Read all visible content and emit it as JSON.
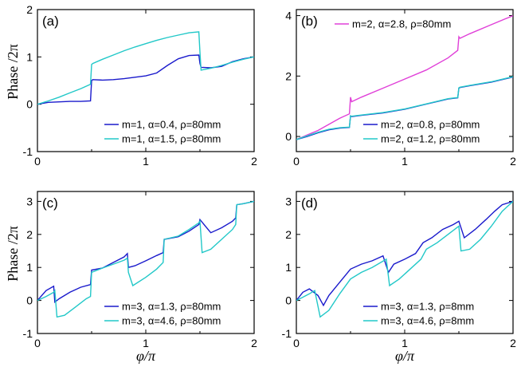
{
  "colors": {
    "blue": "#1a1acc",
    "cyan": "#22c8c8",
    "magenta": "#e040d8",
    "axis": "#000000"
  },
  "ylabel": "Phase /2π",
  "xlabel": "φ/π",
  "chart_data": [
    {
      "type": "line",
      "panel_label": "(a)",
      "xlim": [
        0,
        2
      ],
      "ylim": [
        -1,
        2
      ],
      "xticks": [
        "0",
        "1",
        "2"
      ],
      "yticks": [
        "-1",
        "0",
        "1",
        "2"
      ],
      "legend_position": "bottom-right",
      "series": [
        {
          "name": "m=1, α=0.4, ρ=80mm",
          "color": "#1a1acc",
          "x": [
            0,
            0.1,
            0.2,
            0.3,
            0.4,
            0.49,
            0.5,
            0.51,
            0.6,
            0.7,
            0.8,
            0.9,
            1.0,
            1.1,
            1.2,
            1.3,
            1.4,
            1.49,
            1.5,
            1.51,
            1.6,
            1.7,
            1.8,
            1.9,
            2.0
          ],
          "y": [
            0,
            0.04,
            0.05,
            0.06,
            0.06,
            0.07,
            0.5,
            0.52,
            0.51,
            0.52,
            0.54,
            0.57,
            0.6,
            0.66,
            0.82,
            0.96,
            1.03,
            1.04,
            0.86,
            0.78,
            0.77,
            0.8,
            0.9,
            0.96,
            1.0
          ]
        },
        {
          "name": "m=1, α=1.5, ρ=80mm",
          "color": "#22c8c8",
          "x": [
            0,
            0.1,
            0.2,
            0.3,
            0.4,
            0.49,
            0.5,
            0.51,
            0.6,
            0.7,
            0.8,
            0.9,
            1.0,
            1.1,
            1.2,
            1.3,
            1.4,
            1.49,
            1.5,
            1.51,
            1.6,
            1.7,
            1.8,
            1.9,
            2.0
          ],
          "y": [
            0,
            0.07,
            0.15,
            0.24,
            0.33,
            0.42,
            0.84,
            0.86,
            0.95,
            1.04,
            1.13,
            1.21,
            1.28,
            1.35,
            1.41,
            1.46,
            1.51,
            1.53,
            1.1,
            0.72,
            0.76,
            0.82,
            0.89,
            0.95,
            1.0
          ]
        }
      ]
    },
    {
      "type": "line",
      "panel_label": "(b)",
      "xlim": [
        0,
        2
      ],
      "ylim": [
        -0.5,
        4.2
      ],
      "xticks": [
        "0",
        "1",
        "2"
      ],
      "yticks": [
        "0",
        "2",
        "4"
      ],
      "legend_position": "bottom-right",
      "top_legend_position": "top",
      "series": [
        {
          "name": "m=2, α=2.8, ρ=80mm",
          "color": "#e040d8",
          "legend": "top",
          "x": [
            0,
            0.1,
            0.2,
            0.3,
            0.4,
            0.49,
            0.5,
            0.51,
            0.6,
            0.8,
            1.0,
            1.2,
            1.4,
            1.49,
            1.5,
            1.51,
            1.6,
            1.8,
            2.0
          ],
          "y": [
            -0.1,
            0.05,
            0.2,
            0.4,
            0.6,
            0.75,
            1.3,
            1.15,
            1.3,
            1.6,
            1.9,
            2.2,
            2.6,
            2.85,
            3.3,
            3.25,
            3.4,
            3.7,
            4.0
          ]
        },
        {
          "name": "m=2, α=0.8, ρ=80mm",
          "color": "#1a1acc",
          "legend": "bottom",
          "x": [
            0,
            0.1,
            0.2,
            0.3,
            0.4,
            0.49,
            0.5,
            0.51,
            0.6,
            0.8,
            1.0,
            1.2,
            1.4,
            1.49,
            1.5,
            1.51,
            1.6,
            1.8,
            2.0
          ],
          "y": [
            -0.1,
            0.0,
            0.12,
            0.22,
            0.28,
            0.3,
            0.68,
            0.66,
            0.7,
            0.78,
            0.9,
            1.07,
            1.24,
            1.28,
            1.6,
            1.62,
            1.68,
            1.8,
            1.97
          ]
        },
        {
          "name": "m=2, α=1.2, ρ=80mm",
          "color": "#22c8c8",
          "legend": "bottom",
          "x": [
            0,
            0.1,
            0.2,
            0.3,
            0.4,
            0.49,
            0.5,
            0.51,
            0.6,
            0.8,
            1.0,
            1.2,
            1.4,
            1.49,
            1.5,
            1.51,
            1.6,
            1.8,
            2.0
          ],
          "y": [
            -0.1,
            0.02,
            0.14,
            0.24,
            0.29,
            0.31,
            0.68,
            0.67,
            0.71,
            0.79,
            0.91,
            1.08,
            1.25,
            1.29,
            1.61,
            1.63,
            1.69,
            1.81,
            1.98
          ]
        }
      ]
    },
    {
      "type": "line",
      "panel_label": "(c)",
      "xlim": [
        0,
        2
      ],
      "ylim": [
        -1,
        3.3
      ],
      "xticks": [
        "0",
        "1",
        "2"
      ],
      "yticks": [
        "-1",
        "0",
        "1",
        "2",
        "3"
      ],
      "legend_position": "bottom-right",
      "series": [
        {
          "name": "m=3, α=1.3, ρ=80mm",
          "color": "#1a1acc",
          "x": [
            0,
            0.08,
            0.15,
            0.16,
            0.2,
            0.3,
            0.4,
            0.49,
            0.5,
            0.6,
            0.7,
            0.8,
            0.83,
            0.84,
            0.9,
            1.0,
            1.1,
            1.16,
            1.17,
            1.3,
            1.4,
            1.49,
            1.5,
            1.6,
            1.7,
            1.8,
            1.83,
            1.84,
            1.9,
            2.0
          ],
          "y": [
            0,
            0.3,
            0.43,
            -0.05,
            0.05,
            0.25,
            0.4,
            0.48,
            0.92,
            0.98,
            1.15,
            1.32,
            1.42,
            1.0,
            1.05,
            1.2,
            1.36,
            1.45,
            1.85,
            1.93,
            2.1,
            2.3,
            2.45,
            2.05,
            2.2,
            2.4,
            2.5,
            2.9,
            2.93,
            3.0
          ]
        },
        {
          "name": "m=3, α=4.6, ρ=80mm",
          "color": "#22c8c8",
          "x": [
            0,
            0.08,
            0.15,
            0.16,
            0.18,
            0.25,
            0.35,
            0.45,
            0.49,
            0.5,
            0.6,
            0.7,
            0.8,
            0.83,
            0.84,
            0.88,
            1.0,
            1.1,
            1.16,
            1.17,
            1.3,
            1.4,
            1.49,
            1.5,
            1.52,
            1.6,
            1.7,
            1.8,
            1.83,
            1.84,
            1.9,
            2.0
          ],
          "y": [
            0,
            0.12,
            0.25,
            0.3,
            -0.5,
            -0.45,
            -0.2,
            0.05,
            0.12,
            0.85,
            0.98,
            1.1,
            1.22,
            1.28,
            0.85,
            0.45,
            0.7,
            0.95,
            1.15,
            1.85,
            1.95,
            2.15,
            2.35,
            2.4,
            1.45,
            1.55,
            1.85,
            2.15,
            2.3,
            2.9,
            2.93,
            3.0
          ]
        }
      ]
    },
    {
      "type": "line",
      "panel_label": "(d)",
      "xlim": [
        0,
        2
      ],
      "ylim": [
        -1,
        3.3
      ],
      "xticks": [
        "0",
        "1",
        "2"
      ],
      "yticks": [
        "-1",
        "0",
        "1",
        "2",
        "3"
      ],
      "legend_position": "bottom-right",
      "series": [
        {
          "name": "m=3, α=1.3, ρ=8mm",
          "color": "#1a1acc",
          "x": [
            0,
            0.06,
            0.12,
            0.2,
            0.25,
            0.3,
            0.4,
            0.5,
            0.6,
            0.7,
            0.8,
            0.85,
            0.9,
            1.0,
            1.1,
            1.17,
            1.25,
            1.35,
            1.45,
            1.5,
            1.55,
            1.65,
            1.75,
            1.83,
            1.9,
            2.0
          ],
          "y": [
            0,
            0.25,
            0.35,
            0.15,
            -0.15,
            0.15,
            0.55,
            0.95,
            1.1,
            1.2,
            1.35,
            0.85,
            1.1,
            1.25,
            1.42,
            1.75,
            1.9,
            2.15,
            2.3,
            2.4,
            1.9,
            2.15,
            2.45,
            2.7,
            2.9,
            3.0
          ]
        },
        {
          "name": "m=3, α=4.6, ρ=8mm",
          "color": "#22c8c8",
          "x": [
            0,
            0.06,
            0.12,
            0.17,
            0.22,
            0.3,
            0.4,
            0.5,
            0.6,
            0.7,
            0.83,
            0.86,
            0.95,
            1.05,
            1.15,
            1.2,
            1.3,
            1.4,
            1.5,
            1.52,
            1.6,
            1.7,
            1.8,
            1.9,
            2.0
          ],
          "y": [
            0,
            0.1,
            0.2,
            0.3,
            -0.5,
            -0.3,
            0.2,
            0.65,
            0.85,
            1.0,
            1.25,
            0.45,
            0.65,
            0.95,
            1.25,
            1.55,
            1.75,
            2.0,
            2.25,
            1.5,
            1.55,
            1.85,
            2.25,
            2.7,
            3.0
          ]
        }
      ]
    }
  ]
}
